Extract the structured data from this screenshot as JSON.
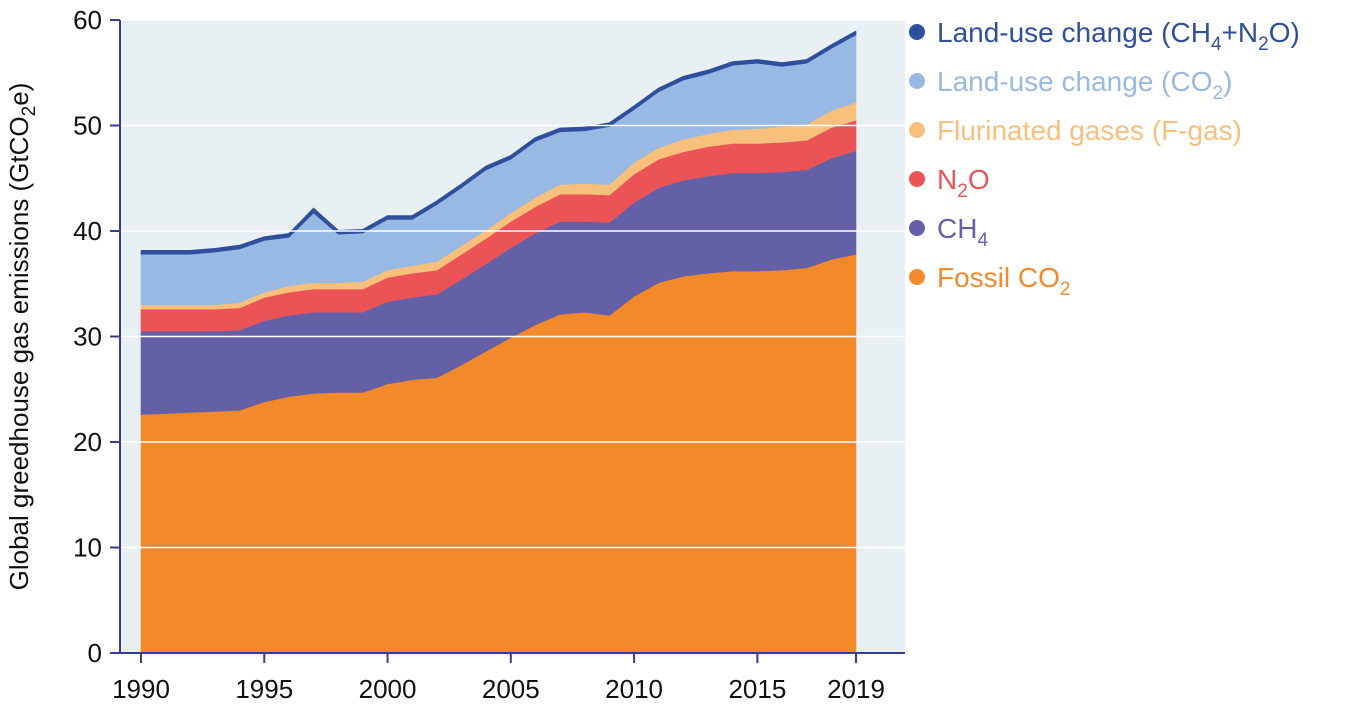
{
  "chart_data": {
    "type": "area",
    "stacked": true,
    "ylabel_main": "Global greedhouse gas emissions (GtCO",
    "ylabel_sub": "2",
    "ylabel_tail": "e)",
    "ylim": [
      0,
      60
    ],
    "y_ticks": [
      "0",
      "10",
      "20",
      "30",
      "40",
      "50",
      "60"
    ],
    "x_ticks": [
      {
        "year": 1990,
        "label": "1990"
      },
      {
        "year": 1995,
        "label": "1995"
      },
      {
        "year": 2000,
        "label": "2000"
      },
      {
        "year": 2005,
        "label": "2005"
      },
      {
        "year": 2010,
        "label": "2010"
      },
      {
        "year": 2015,
        "label": "2015"
      },
      {
        "year": 2019,
        "label": "2019"
      }
    ],
    "x": [
      1990,
      1991,
      1992,
      1993,
      1994,
      1995,
      1996,
      1997,
      1998,
      1999,
      2000,
      2001,
      2002,
      2003,
      2004,
      2005,
      2006,
      2007,
      2008,
      2009,
      2010,
      2011,
      2012,
      2013,
      2014,
      2015,
      2016,
      2017,
      2018,
      2019
    ],
    "series": [
      {
        "name": "Fossil CO2",
        "color": "#f28a2b",
        "values": [
          22.6,
          22.7,
          22.8,
          22.9,
          23.0,
          23.8,
          24.3,
          24.6,
          24.7,
          24.7,
          25.5,
          25.9,
          26.1,
          27.3,
          28.6,
          29.9,
          31.1,
          32.1,
          32.3,
          32.0,
          33.8,
          35.1,
          35.7,
          36.0,
          36.2,
          36.2,
          36.3,
          36.5,
          37.3,
          37.8
        ]
      },
      {
        "name": "CH4",
        "color": "#6460a8",
        "values": [
          7.9,
          7.8,
          7.7,
          7.6,
          7.6,
          7.7,
          7.7,
          7.7,
          7.6,
          7.6,
          7.8,
          7.8,
          7.9,
          8.1,
          8.3,
          8.5,
          8.7,
          8.8,
          8.6,
          8.8,
          8.9,
          9.0,
          9.1,
          9.2,
          9.3,
          9.3,
          9.3,
          9.3,
          9.6,
          9.8
        ]
      },
      {
        "name": "N2O",
        "color": "#ec5357",
        "values": [
          2.1,
          2.1,
          2.1,
          2.1,
          2.1,
          2.2,
          2.2,
          2.2,
          2.2,
          2.2,
          2.3,
          2.3,
          2.3,
          2.4,
          2.4,
          2.5,
          2.5,
          2.6,
          2.6,
          2.6,
          2.7,
          2.7,
          2.7,
          2.8,
          2.8,
          2.8,
          2.8,
          2.8,
          2.9,
          2.9
        ]
      },
      {
        "name": "F-gas",
        "color": "#f9c07b",
        "values": [
          0.4,
          0.4,
          0.4,
          0.4,
          0.5,
          0.5,
          0.6,
          0.6,
          0.6,
          0.7,
          0.7,
          0.7,
          0.8,
          0.8,
          0.8,
          0.8,
          0.9,
          0.9,
          1.0,
          1.0,
          1.1,
          1.1,
          1.2,
          1.2,
          1.3,
          1.4,
          1.5,
          1.5,
          1.6,
          1.7
        ]
      },
      {
        "name": "Land-use change CO2",
        "color": "#98b9e3",
        "values": [
          4.8,
          4.8,
          4.8,
          5.0,
          5.1,
          4.9,
          4.6,
          6.6,
          4.6,
          4.6,
          4.8,
          4.4,
          5.4,
          5.5,
          5.7,
          5.1,
          5.3,
          5.0,
          5.0,
          5.5,
          5.0,
          5.3,
          5.6,
          5.7,
          6.1,
          6.2,
          5.7,
          5.8,
          5.9,
          6.4
        ]
      },
      {
        "name": "Land-use change CH4+N2O",
        "color": "#2f4f9e",
        "values": [
          0.3,
          0.3,
          0.3,
          0.3,
          0.3,
          0.3,
          0.3,
          0.4,
          0.3,
          0.3,
          0.3,
          0.3,
          0.3,
          0.3,
          0.3,
          0.3,
          0.3,
          0.3,
          0.3,
          0.3,
          0.3,
          0.3,
          0.3,
          0.3,
          0.3,
          0.3,
          0.3,
          0.3,
          0.3,
          0.3
        ]
      }
    ],
    "legend": {
      "position": "top-right",
      "entries": [
        {
          "pre": "Land-use change (CH",
          "sub1": "4",
          "mid": "+N",
          "sub2": "2",
          "post": "O)",
          "color": "#2f4f9e"
        },
        {
          "pre": "Land-use change (CO",
          "sub1": "2",
          "mid": "",
          "sub2": "",
          "post": ")",
          "color": "#98b9e3"
        },
        {
          "pre": "Flurinated gases (F-gas)",
          "sub1": "",
          "mid": "",
          "sub2": "",
          "post": "",
          "color": "#f9c07b"
        },
        {
          "pre": "N",
          "sub1": "2",
          "mid": "O",
          "sub2": "",
          "post": "",
          "color": "#ec5357"
        },
        {
          "pre": "CH",
          "sub1": "4",
          "mid": "",
          "sub2": "",
          "post": "",
          "color": "#6460a8"
        },
        {
          "pre": "Fossil CO",
          "sub1": "2",
          "mid": "",
          "sub2": "",
          "post": "",
          "color": "#f28a2b"
        }
      ]
    },
    "plot_background": "#e8f0f3",
    "axis_color": "#3a3c8c"
  }
}
